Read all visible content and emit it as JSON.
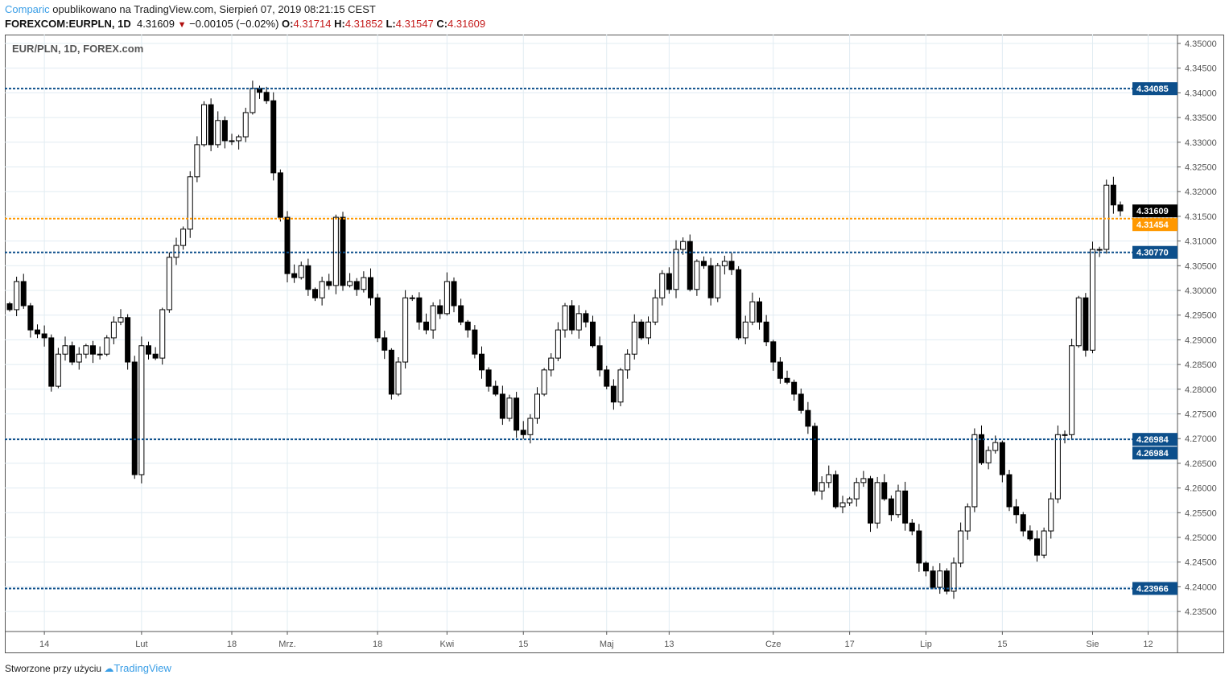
{
  "header": {
    "author": "Comparic",
    "published": "opublikowano na TradingView.com, Sierpień 07, 2019 08:21:15 CEST",
    "symbol": "FOREXCOM:EURPLN, 1D",
    "last": "4.31609",
    "change": "−0.00105 (−0.02%)",
    "o_label": "O:",
    "o": "4.31714",
    "h_label": "H:",
    "h": "4.31852",
    "l_label": "L:",
    "l": "4.31547",
    "c_label": "C:",
    "c": "4.31609"
  },
  "legend": "EUR/PLN, 1D, FOREX.com",
  "footer": {
    "text": "Stworzone przy użyciu",
    "brand": "TradingView"
  },
  "colors": {
    "level_blue": "#0d4f8b",
    "level_orange": "#ff9800",
    "last_price": "#000000",
    "grid": "#e1ecf2"
  },
  "chart_data": {
    "type": "candlestick",
    "title": "EUR/PLN, 1D, FOREX.com",
    "ylim": [
      4.2325,
      4.3515
    ],
    "y_ticks": [
      "4.23500",
      "4.24000",
      "4.24500",
      "4.25000",
      "4.25500",
      "4.26000",
      "4.26500",
      "4.27000",
      "4.27500",
      "4.28000",
      "4.28500",
      "4.29000",
      "4.29500",
      "4.30000",
      "4.30500",
      "4.31000",
      "4.31500",
      "4.32000",
      "4.32500",
      "4.33000",
      "4.33500",
      "4.34000",
      "4.34500",
      "4.35000"
    ],
    "x_ticks": [
      {
        "label": "14",
        "index": 5
      },
      {
        "label": "Lut",
        "index": 19
      },
      {
        "label": "18",
        "index": 32
      },
      {
        "label": "Mrz.",
        "index": 40
      },
      {
        "label": "18",
        "index": 53
      },
      {
        "label": "Kwi",
        "index": 63
      },
      {
        "label": "15",
        "index": 74
      },
      {
        "label": "Maj",
        "index": 86
      },
      {
        "label": "13",
        "index": 95
      },
      {
        "label": "Cze",
        "index": 110
      },
      {
        "label": "17",
        "index": 121
      },
      {
        "label": "Lip",
        "index": 132
      },
      {
        "label": "15",
        "index": 143
      },
      {
        "label": "Sie",
        "index": 156
      },
      {
        "label": "12",
        "index": 164
      }
    ],
    "closes": [
      4.2961,
      4.3018,
      4.2969,
      4.292,
      4.2912,
      4.2904,
      4.2806,
      4.2871,
      4.2888,
      4.2855,
      4.2871,
      4.2888,
      4.2871,
      4.2871,
      4.2904,
      4.2936,
      4.2945,
      4.2855,
      4.2627,
      4.2888,
      4.2871,
      4.2863,
      4.2961,
      4.3067,
      4.3091,
      4.3124,
      4.323,
      4.3295,
      4.3376,
      4.3295,
      4.3344,
      4.3303,
      4.3303,
      4.3311,
      4.336,
      4.3409,
      4.3401,
      4.3384,
      4.3238,
      4.3148,
      4.3034,
      4.3026,
      4.305,
      4.3002,
      4.2985,
      4.3018,
      4.301,
      4.3148,
      4.301,
      4.3018,
      4.3002,
      4.3026,
      4.2985,
      4.2904,
      4.2879,
      4.279,
      4.2855,
      4.2985,
      4.2985,
      4.2936,
      4.292,
      4.2969,
      4.2953,
      4.3018,
      4.2969,
      4.2936,
      4.292,
      4.2871,
      4.2839,
      4.2806,
      4.279,
      4.2741,
      4.2782,
      4.2717,
      4.2708,
      4.2741,
      4.279,
      4.2839,
      4.2863,
      4.292,
      4.2969,
      4.292,
      4.2953,
      4.2936,
      4.2888,
      4.2839,
      4.2806,
      4.2774,
      4.2839,
      4.2871,
      4.2936,
      4.2904,
      4.2936,
      4.2985,
      4.3034,
      4.3002,
      4.3083,
      4.3099,
      4.3002,
      4.3059,
      4.305,
      4.2985,
      4.305,
      4.3059,
      4.3042,
      4.2904,
      4.2936,
      4.2977,
      4.2936,
      4.2896,
      4.2855,
      4.2822,
      4.2814,
      4.279,
      4.2757,
      4.2725,
      4.2594,
      4.2611,
      4.2627,
      4.2562,
      4.257,
      4.2578,
      4.2611,
      4.2619,
      4.2529,
      4.2611,
      4.2578,
      4.2546,
      4.2594,
      4.2529,
      4.2513,
      4.2448,
      4.2432,
      4.2399,
      4.2432,
      4.2391,
      4.2448,
      4.2513,
      4.2562,
      4.2708,
      4.2651,
      4.2676,
      4.2692,
      4.2627,
      4.2562,
      4.2546,
      4.2513,
      4.2497,
      4.2464,
      4.2513,
      4.2578,
      4.2708,
      4.2708,
      4.2888,
      4.2985,
      4.2879,
      4.3083,
      4.3083,
      4.3213,
      4.3173,
      4.3161
    ],
    "levels": [
      {
        "value": 4.34085,
        "label": "4.34085",
        "color": "#0d4f8b"
      },
      {
        "value": 4.31454,
        "label": "4.31454",
        "color": "#ff9800"
      },
      {
        "value": 4.3077,
        "label": "4.30770",
        "color": "#0d4f8b"
      },
      {
        "value": 4.26984,
        "label": "4.26984",
        "color": "#0d4f8b"
      },
      {
        "value": 4.23966,
        "label": "4.23966",
        "color": "#0d4f8b"
      }
    ],
    "last_price": {
      "value": 4.31609,
      "label": "4.31609"
    },
    "extra_level_label": "4.26984"
  }
}
